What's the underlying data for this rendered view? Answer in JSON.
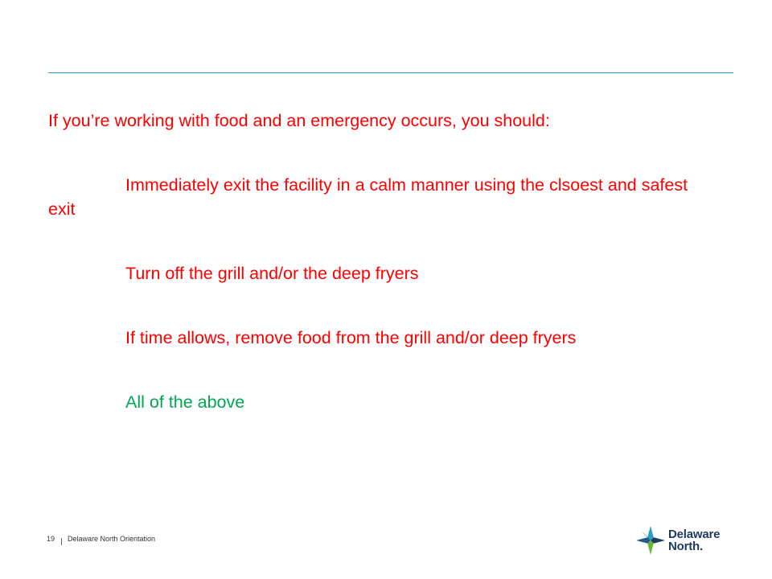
{
  "slide": {
    "question": "If you’re working with food and an emergency occurs, you should:",
    "options": [
      {
        "text": "Immediately exit the facility in a calm manner using the clsoest and safest exit",
        "color": "#ff0000"
      },
      {
        "text": "Turn off the grill and/or the deep fryers",
        "color": "#ff0000"
      },
      {
        "text": "If time allows, remove food from the grill and/or deep fryers",
        "color": "#ff0000"
      },
      {
        "text": "All of the above",
        "color": "#00a651"
      }
    ],
    "rule_color": "#2a9fbe"
  },
  "footer": {
    "page_number": "19",
    "title": "Delaware North Orientation"
  },
  "logo": {
    "line1": "Delaware",
    "line2": "North."
  }
}
